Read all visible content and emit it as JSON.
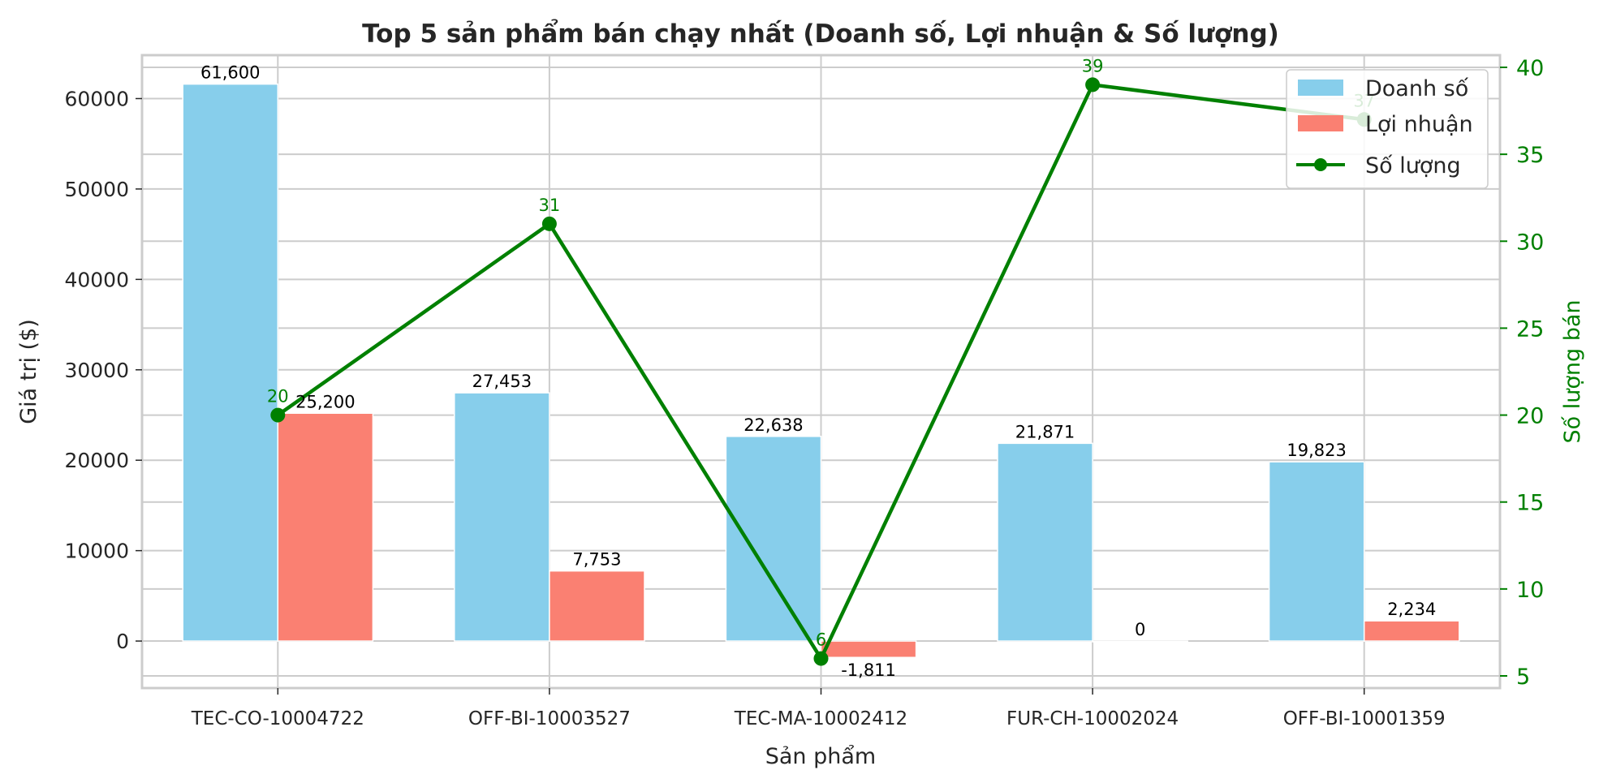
{
  "chart_data": {
    "type": "bar",
    "title": "Top 5 sản phẩm bán chạy nhất (Doanh số, Lợi nhuận & Số lượng)",
    "xlabel": "Sản phẩm",
    "ylabel": "Giá trị ($)",
    "y2label": "Số lượng bán",
    "categories": [
      "TEC-CO-10004722",
      "OFF-BI-10003527",
      "TEC-MA-10002412",
      "FUR-CH-10002024",
      "OFF-BI-10001359"
    ],
    "series": [
      {
        "name": "Doanh số",
        "kind": "bar",
        "axis": "left",
        "color": "#87CEEB",
        "values": [
          61600,
          27453,
          22638,
          21871,
          19823
        ],
        "labels": [
          "61,600",
          "27,453",
          "22,638",
          "21,871",
          "19,823"
        ]
      },
      {
        "name": "Lợi nhuận",
        "kind": "bar",
        "axis": "left",
        "color": "#FA8072",
        "values": [
          25200,
          7753,
          -1811,
          0,
          2234
        ],
        "labels": [
          "25,200",
          "7,753",
          "-1,811",
          "0",
          "2,234"
        ]
      },
      {
        "name": "Số lượng",
        "kind": "line",
        "axis": "right",
        "color": "#008000",
        "values": [
          20,
          31,
          6,
          39,
          37
        ],
        "labels": [
          "20",
          "31",
          "6",
          "39",
          "37"
        ]
      }
    ],
    "ylim": [
      -5200,
      64800
    ],
    "y2lim": [
      4.3,
      40.7
    ],
    "yticks": [
      0,
      10000,
      20000,
      30000,
      40000,
      50000,
      60000
    ],
    "ytick_labels": [
      "0",
      "10000",
      "20000",
      "30000",
      "40000",
      "50000",
      "60000"
    ],
    "y2ticks": [
      5,
      10,
      15,
      20,
      25,
      30,
      35,
      40
    ],
    "y2tick_labels": [
      "5",
      "10",
      "15",
      "20",
      "25",
      "30",
      "35",
      "40"
    ],
    "grid": true,
    "legend_position": "top-right",
    "colors": {
      "grid": "#cccccc",
      "axis": "#cccccc",
      "text": "#262626",
      "quantity": "#008000"
    }
  }
}
